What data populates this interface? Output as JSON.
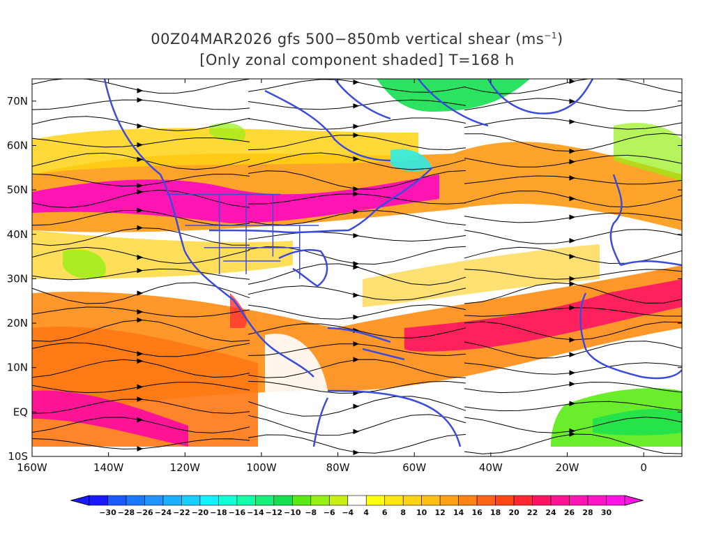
{
  "title": {
    "line1_prefix": "00Z04MAR2026 gfs 500−850mb vertical shear (ms",
    "line1_unit_exp": "−1",
    "line1_suffix": ")",
    "line2": "[Only zonal component shaded] T=168 h"
  },
  "map": {
    "lon_range": [
      -160,
      10
    ],
    "lat_range": [
      -10,
      75
    ],
    "lat_ticks": [
      {
        "value": 70,
        "label": "70N"
      },
      {
        "value": 60,
        "label": "60N"
      },
      {
        "value": 50,
        "label": "50N"
      },
      {
        "value": 40,
        "label": "40N"
      },
      {
        "value": 30,
        "label": "30N"
      },
      {
        "value": 20,
        "label": "20N"
      },
      {
        "value": 10,
        "label": "10N"
      },
      {
        "value": 0,
        "label": "EQ"
      },
      {
        "value": -10,
        "label": "10S"
      }
    ],
    "lon_ticks": [
      {
        "value": -160,
        "label": "160W"
      },
      {
        "value": -140,
        "label": "140W"
      },
      {
        "value": -120,
        "label": "120W"
      },
      {
        "value": -100,
        "label": "100W"
      },
      {
        "value": -80,
        "label": "80W"
      },
      {
        "value": -60,
        "label": "60W"
      },
      {
        "value": -40,
        "label": "40W"
      },
      {
        "value": -20,
        "label": "20W"
      },
      {
        "value": 0,
        "label": "0"
      }
    ],
    "coastline_color": "#3b4bdc",
    "streamline_color": "#000000"
  },
  "colorbar": {
    "labels": [
      "-30",
      "-28",
      "-26",
      "-24",
      "-22",
      "-20",
      "-18",
      "-16",
      "-14",
      "-12",
      "-10",
      "-8",
      "-6",
      "-4",
      "4",
      "6",
      "8",
      "10",
      "12",
      "14",
      "16",
      "18",
      "20",
      "22",
      "24",
      "26",
      "28",
      "30"
    ],
    "colors": [
      "#1a1aff",
      "#1a5aff",
      "#1a7aff",
      "#2294ff",
      "#1ab0ff",
      "#14cfff",
      "#14f0ff",
      "#14ffd8",
      "#14ffa8",
      "#14f07a",
      "#14e050",
      "#5aeb14",
      "#96f014",
      "#c8f014",
      "#ffffff",
      "#ffff14",
      "#ffe614",
      "#ffd214",
      "#ffbe14",
      "#ffa014",
      "#ff8214",
      "#ff6414",
      "#ff4614",
      "#ff2832",
      "#ff1464",
      "#ff1496",
      "#ff14b4",
      "#ff14c8",
      "#ff14e6"
    ]
  }
}
